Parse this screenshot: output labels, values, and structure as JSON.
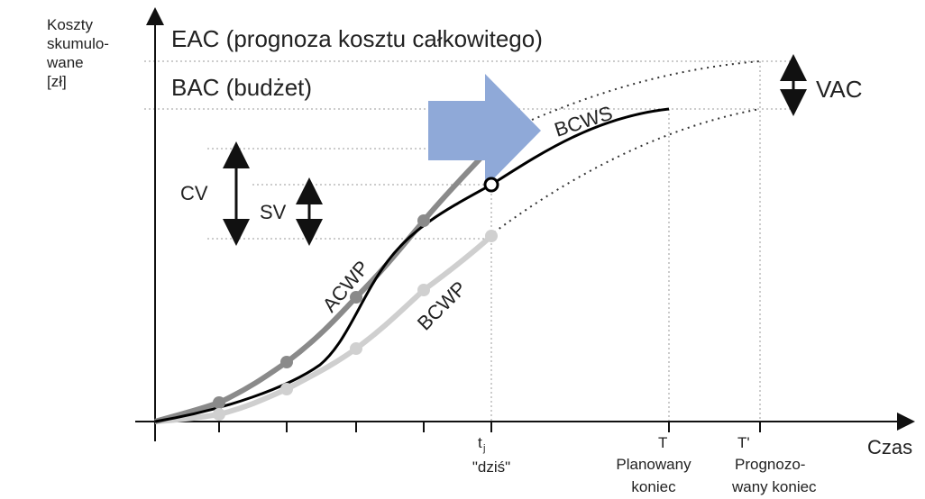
{
  "y_axis_label": [
    "Koszty",
    "skumulo-",
    "wane",
    "[zł]"
  ],
  "eac_label": "EAC (prognoza kosztu całkowitego)",
  "bac_label": "BAC (budżet)",
  "vac_label": "VAC",
  "cv_label": "CV",
  "sv_label": "SV",
  "curves": {
    "bcws": "BCWS",
    "acwp": "ACWP",
    "bcwp": "BCWP"
  },
  "today": {
    "symbol": "t",
    "subscript": "j",
    "caption": "\"dziś\""
  },
  "planned_end": {
    "symbol": "T",
    "caption": [
      "Planowany",
      "koniec"
    ]
  },
  "forecast_end": {
    "symbol": "T'",
    "caption": [
      "Prognozo-",
      "wany koniec"
    ]
  },
  "x_axis_label": "Czas"
}
